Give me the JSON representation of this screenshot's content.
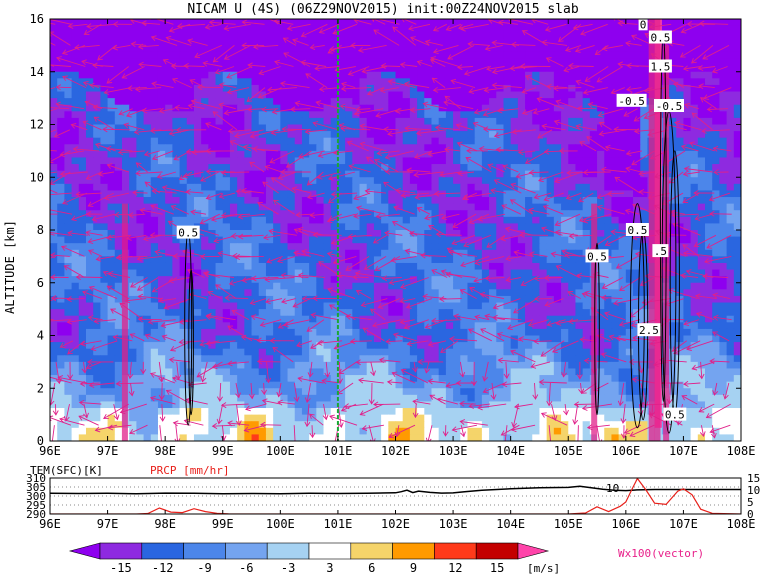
{
  "title": "NICAM U (4S) (06Z29NOV2015) init:00Z24NOV2015 slab",
  "chart_data": [
    {
      "type": "heatmap",
      "title": "NICAM U (4S) (06Z29NOV2015) init:00Z24NOV2015 slab",
      "xlabel": "",
      "ylabel": "ALTITUDE [km]",
      "x_tick_labels": [
        "96E",
        "97E",
        "98E",
        "99E",
        "100E",
        "101E",
        "102E",
        "103E",
        "104E",
        "105E",
        "106E",
        "107E",
        "108E"
      ],
      "xlim": [
        96,
        108
      ],
      "ylim": [
        0,
        16
      ],
      "y_tick_labels": [
        "0",
        "2",
        "4",
        "6",
        "8",
        "10",
        "12",
        "14",
        "16"
      ],
      "reference_line_x": 101.0,
      "contour_labels": [
        {
          "text": "0.5",
          "x": 98.4,
          "y": 7.9
        },
        {
          "text": "0.5",
          "x": 105.5,
          "y": 7.0
        },
        {
          "text": "0.5",
          "x": 106.2,
          "y": 8.0
        },
        {
          "text": ".5",
          "x": 106.6,
          "y": 7.2
        },
        {
          "text": "2.5",
          "x": 106.4,
          "y": 4.2
        },
        {
          "text": "0.5",
          "x": 106.85,
          "y": 1.0
        },
        {
          "text": "-0.5",
          "x": 106.1,
          "y": 12.9
        },
        {
          "text": "-0.5",
          "x": 106.75,
          "y": 12.7
        },
        {
          "text": "0.5",
          "x": 106.6,
          "y": 15.3
        },
        {
          "text": "1.5",
          "x": 106.6,
          "y": 14.2
        },
        {
          "text": "0",
          "x": 106.3,
          "y": 15.8
        }
      ]
    },
    {
      "type": "line",
      "title": "",
      "series": [
        {
          "name": "TEM(SFC)[K]",
          "color": "#000000",
          "x": [
            96,
            96.5,
            97,
            97.5,
            98,
            98.5,
            99,
            99.5,
            100,
            100.5,
            101,
            101.5,
            102,
            102.1,
            102.2,
            102.3,
            102.4,
            102.6,
            102.8,
            103,
            103.2,
            103.5,
            104,
            104.5,
            105,
            105.2,
            105.4,
            105.6,
            105.8,
            106,
            106.2,
            106.5,
            107,
            107.5,
            108
          ],
          "values": [
            301.5,
            301.4,
            301.5,
            301.3,
            301.6,
            301.5,
            301.2,
            301.4,
            301.3,
            301.5,
            301.4,
            301.5,
            301.8,
            302.4,
            303.2,
            301.9,
            302.7,
            302.0,
            301.6,
            301.7,
            302.4,
            303.2,
            304.0,
            304.6,
            304.8,
            305.4,
            304.6,
            303.8,
            303.2,
            303.0,
            303.4,
            303.6,
            303.6,
            303.6,
            303.6
          ]
        },
        {
          "name": "PRCP [mm/hr]",
          "color": "#e8201a",
          "x": [
            96,
            97.5,
            97.7,
            97.9,
            98.1,
            98.3,
            98.5,
            98.7,
            98.9,
            99.1,
            99.3,
            100,
            105,
            105.3,
            105.5,
            105.7,
            105.9,
            106.0,
            106.1,
            106.2,
            106.35,
            106.5,
            106.7,
            106.9,
            107.0,
            107.15,
            107.3,
            107.5,
            108
          ],
          "values": [
            0,
            0,
            0.2,
            2.5,
            0.8,
            0.6,
            2.2,
            1.0,
            0.3,
            0.1,
            0,
            0,
            0,
            0.4,
            3.0,
            1.0,
            3.2,
            5.0,
            10.0,
            14.8,
            10.0,
            4.5,
            4.0,
            9.5,
            10.5,
            8.0,
            2.0,
            0.3,
            0
          ]
        }
      ],
      "x_tick_labels": [
        "96E",
        "97E",
        "98E",
        "99E",
        "100E",
        "101E",
        "102E",
        "103E",
        "104E",
        "105E",
        "106E",
        "107E",
        "108E"
      ],
      "xlim": [
        96,
        108
      ],
      "y_left_label": "TEM(SFC)[K]",
      "y_left_ticks": [
        "310",
        "305",
        "300",
        "295",
        "290"
      ],
      "y_left_lim": [
        290,
        310
      ],
      "y_right_label": "PRCP [mm/hr]",
      "y_right_ticks": [
        "15",
        "10",
        "5",
        "0"
      ],
      "y_right_lim": [
        0,
        15
      ],
      "annotation": "10"
    }
  ],
  "colorbar": {
    "labels": [
      "-15",
      "-12",
      "-9",
      "-6",
      "-3",
      "3",
      "6",
      "9",
      "12",
      "15"
    ],
    "unit": "[m/s]",
    "colors": [
      "#8e2ae0",
      "#2a66e0",
      "#4c86ea",
      "#74a4f0",
      "#a6d2f2",
      "#ffffff",
      "#f5d46a",
      "#ff9a00",
      "#ff3a1a",
      "#c40000"
    ],
    "min_color": "#8e00ef",
    "max_color": "#ff44aa"
  },
  "vector_legend": "Wx100(vector)"
}
